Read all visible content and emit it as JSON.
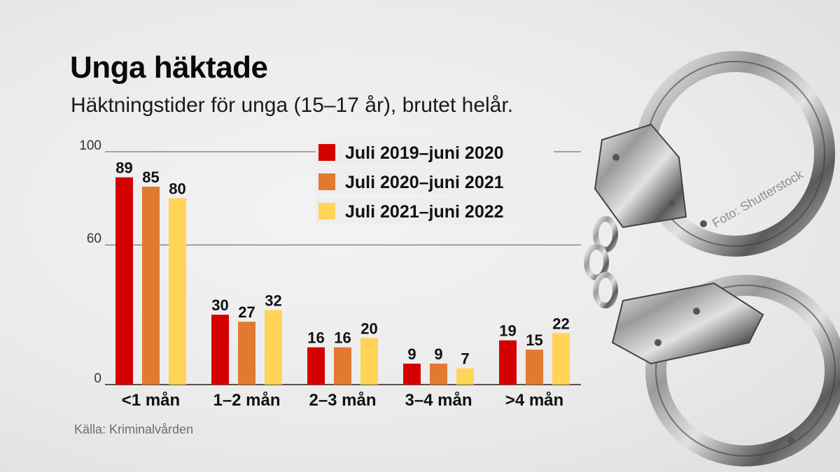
{
  "header": {
    "title": "Unga häktade",
    "subtitle": "Häktningstider för unga (15–17 år), brutet helår."
  },
  "footer": {
    "source": "Källa: Kriminalvården",
    "photo_credit": "Foto: Shutterstock"
  },
  "chart_data": {
    "type": "bar",
    "title": "Unga häktade",
    "subtitle": "Häktningstider för unga (15–17 år), brutet helår.",
    "categories": [
      "<1 mån",
      "1–2 mån",
      "2–3 mån",
      "3–4 mån",
      ">4 mån"
    ],
    "series": [
      {
        "name": "Juli 2019–juni 2020",
        "color": "#d40000",
        "values": [
          89,
          30,
          16,
          9,
          19
        ]
      },
      {
        "name": "Juli 2020–juni 2021",
        "color": "#e17a30",
        "values": [
          85,
          27,
          16,
          9,
          15
        ]
      },
      {
        "name": "Juli 2021–juni 2022",
        "color": "#ffd457",
        "values": [
          80,
          32,
          20,
          7,
          22
        ]
      }
    ],
    "y_ticks": [
      0,
      60,
      100
    ],
    "ylim": [
      0,
      100
    ],
    "xlabel": "",
    "ylabel": "",
    "grid": true,
    "legend_position": "top-right"
  }
}
